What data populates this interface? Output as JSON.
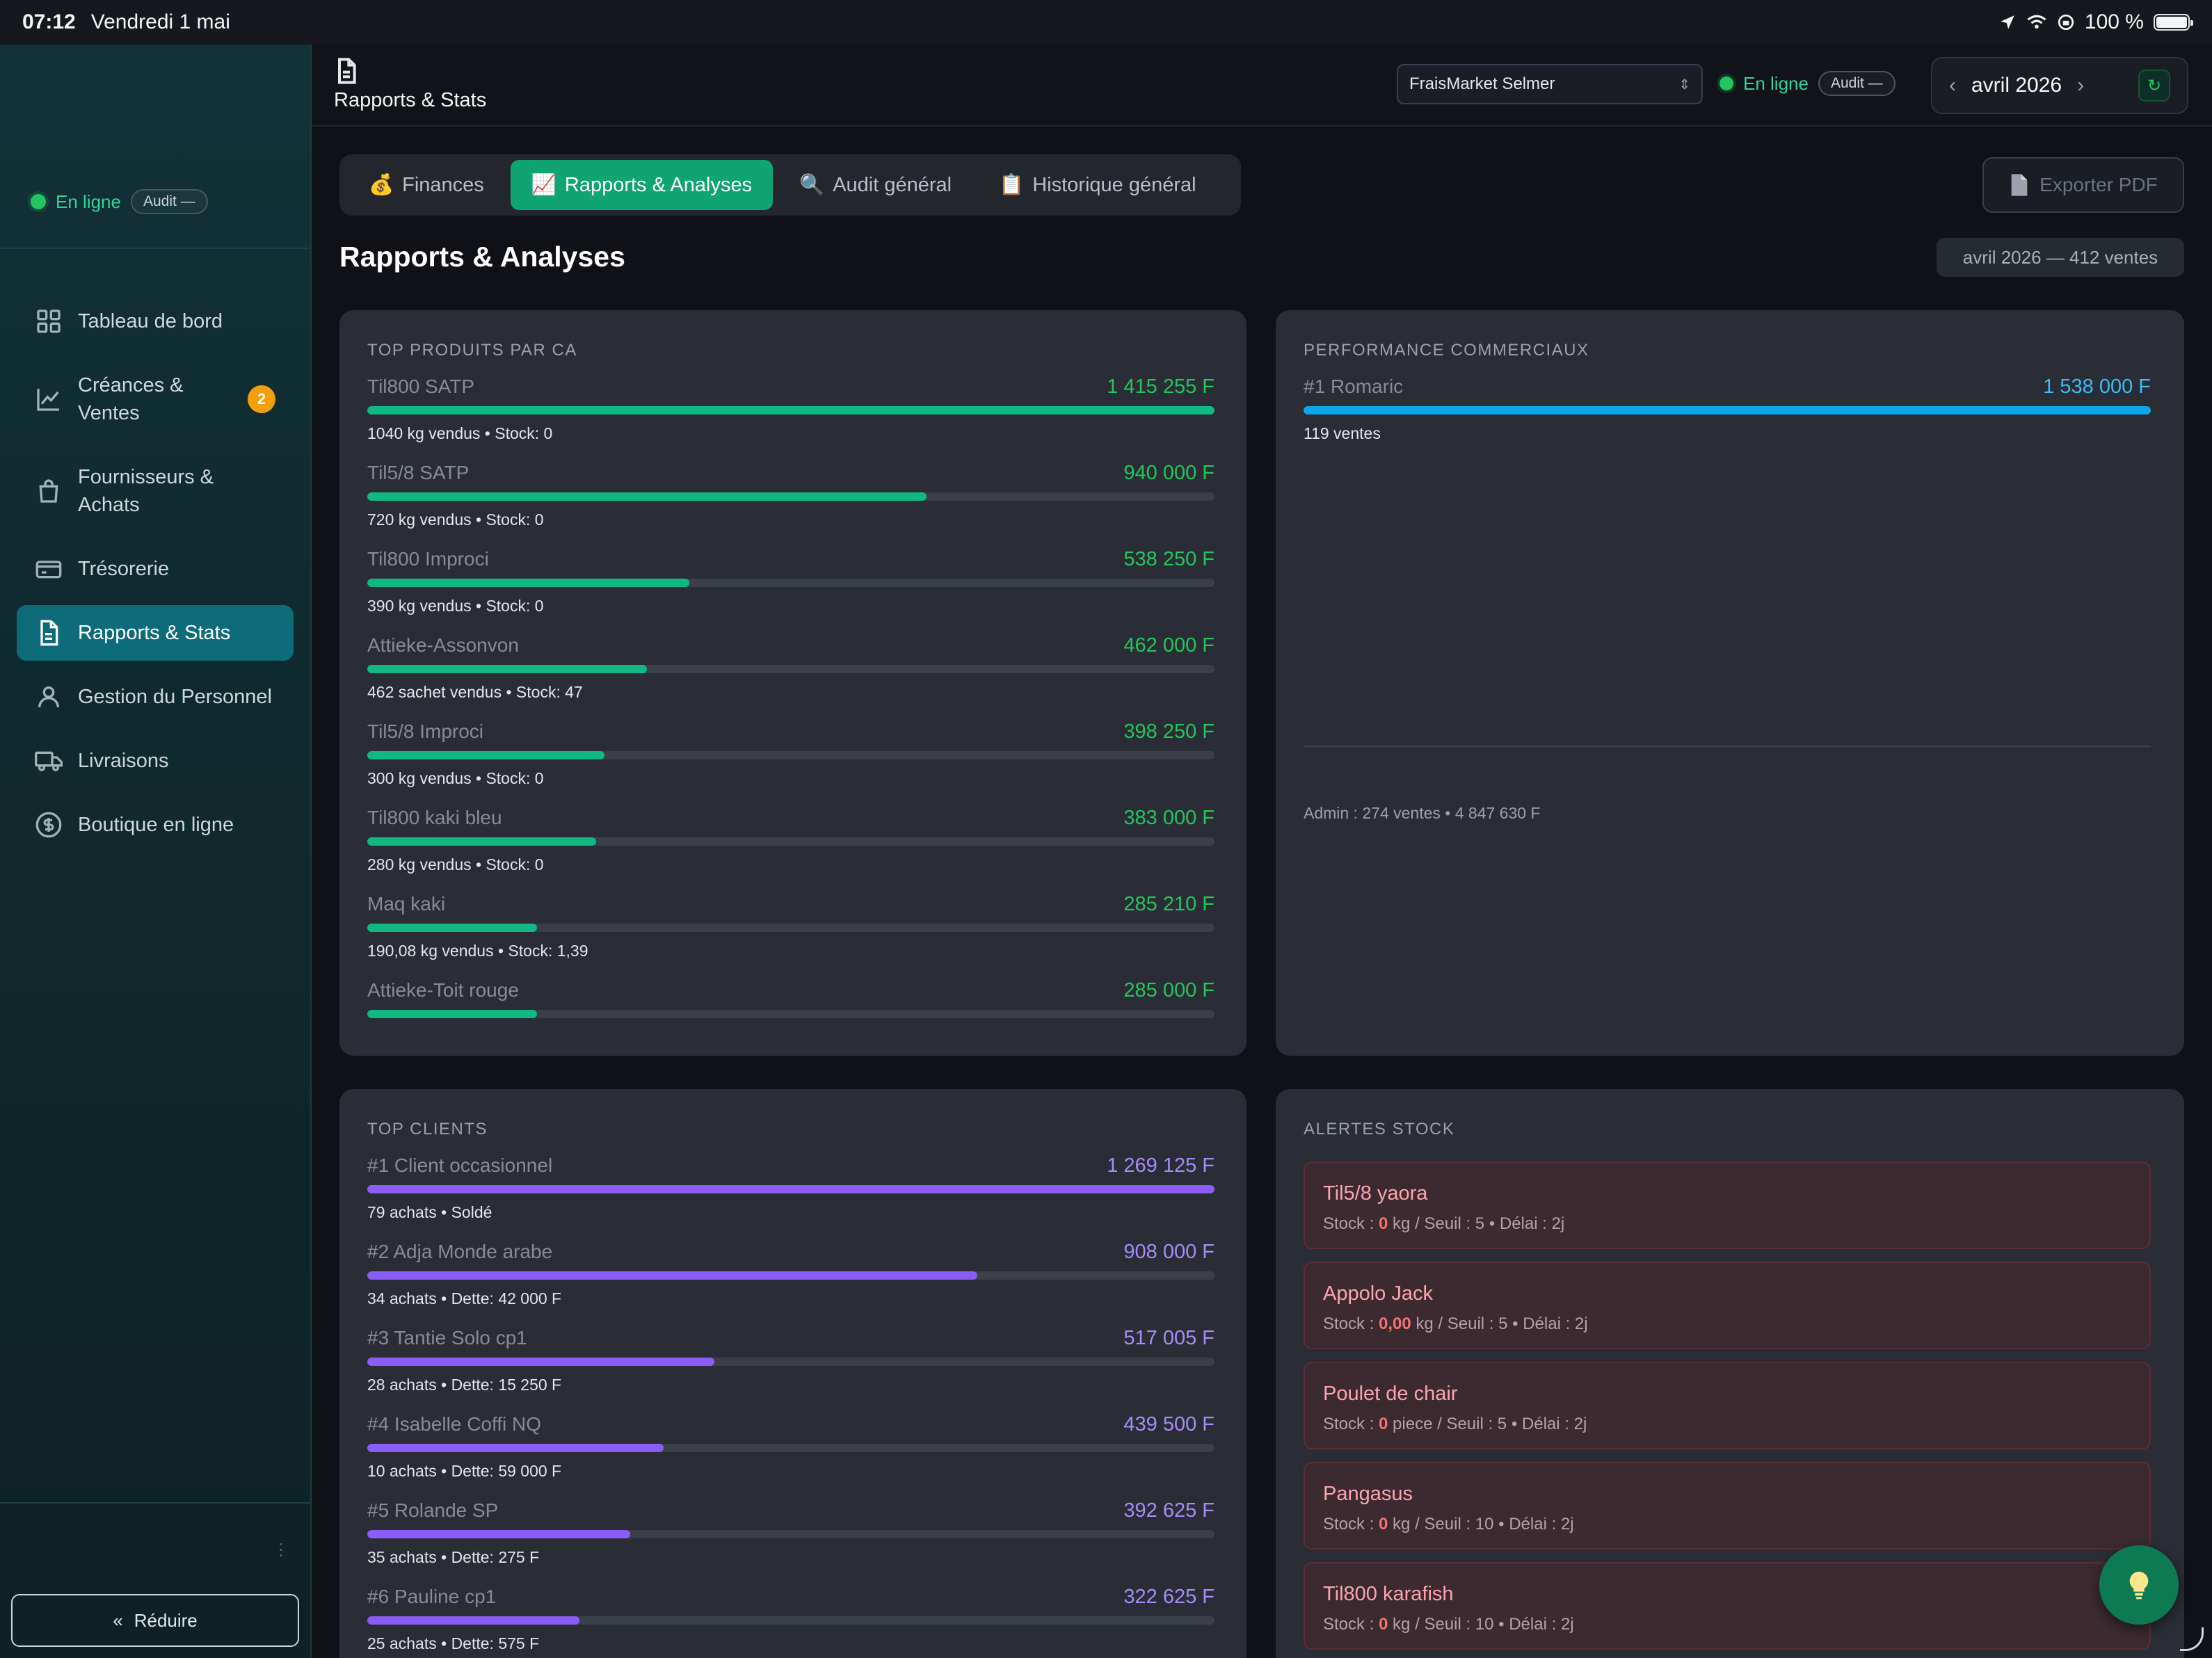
{
  "status_bar": {
    "time": "07:12",
    "date": "Vendredi 1 mai",
    "battery": "100 %"
  },
  "sidebar": {
    "online": "En ligne",
    "audit": "Audit —",
    "items": [
      {
        "label": "Tableau de bord",
        "icon": "grid-icon",
        "badge": ""
      },
      {
        "label": "Créances & Ventes",
        "icon": "chart-line-icon",
        "badge": "2"
      },
      {
        "label": "Fournisseurs & Achats",
        "icon": "shopping-bag-icon",
        "badge": ""
      },
      {
        "label": "Trésorerie",
        "icon": "cash-icon",
        "badge": ""
      },
      {
        "label": "Rapports & Stats",
        "icon": "report-icon",
        "badge": "",
        "active": true
      },
      {
        "label": "Gestion du Personnel",
        "icon": "user-icon",
        "badge": ""
      },
      {
        "label": "Livraisons",
        "icon": "truck-icon",
        "badge": ""
      },
      {
        "label": "Boutique en ligne",
        "icon": "dollar-circle-icon",
        "badge": ""
      }
    ],
    "collapse_label": "Réduire"
  },
  "topbar": {
    "page_label": "Rapports & Stats",
    "store": "FraisMarket Selmer",
    "online": "En ligne",
    "audit": "Audit —",
    "month": "avril 2026"
  },
  "tabs": [
    {
      "emoji": "💰",
      "label": "Finances"
    },
    {
      "emoji": "📈",
      "label": "Rapports & Analyses",
      "active": true
    },
    {
      "emoji": "🔍",
      "label": "Audit général"
    },
    {
      "emoji": "📋",
      "label": "Historique général"
    }
  ],
  "export_label": "Exporter PDF",
  "section_title": "Rapports & Analyses",
  "period_summary": "avril 2026 — 412 ventes",
  "top_products": {
    "title": "TOP PRODUITS PAR CA",
    "rows": [
      {
        "name": "Til800 SATP",
        "amount": "1 415 255 F",
        "sub": "1040 kg vendus • Stock: 0",
        "share": 1.0
      },
      {
        "name": "Til5/8 SATP",
        "amount": "940 000 F",
        "sub": "720 kg vendus • Stock: 0",
        "share": 0.66
      },
      {
        "name": "Til800 Improci",
        "amount": "538 250 F",
        "sub": "390 kg vendus • Stock: 0",
        "share": 0.38
      },
      {
        "name": "Attieke-Assonvon",
        "amount": "462 000 F",
        "sub": "462 sachet vendus • Stock: 47",
        "share": 0.33
      },
      {
        "name": "Til5/8 Improci",
        "amount": "398 250 F",
        "sub": "300 kg vendus • Stock: 0",
        "share": 0.28
      },
      {
        "name": "Til800 kaki bleu",
        "amount": "383 000 F",
        "sub": "280 kg vendus • Stock: 0",
        "share": 0.27
      },
      {
        "name": "Maq kaki",
        "amount": "285 210 F",
        "sub": "190,08 kg vendus • Stock: 1,39",
        "share": 0.2
      },
      {
        "name": "Attieke-Toit rouge",
        "amount": "285 000 F",
        "sub": "",
        "share": 0.2
      }
    ]
  },
  "performance": {
    "title": "PERFORMANCE COMMERCIAUX",
    "rows": [
      {
        "name": "#1 Romaric",
        "amount": "1 538 000 F",
        "sub": "119 ventes",
        "share": 1.0
      }
    ],
    "admin": "Admin : 274 ventes • 4 847 630 F"
  },
  "top_clients": {
    "title": "TOP CLIENTS",
    "rows": [
      {
        "name": "#1 Client occasionnel",
        "amount": "1 269 125 F",
        "sub": "79 achats • Soldé",
        "share": 1.0
      },
      {
        "name": "#2 Adja Monde arabe",
        "amount": "908 000 F",
        "sub": "34 achats • Dette: 42 000 F",
        "share": 0.72
      },
      {
        "name": "#3 Tantie Solo cp1",
        "amount": "517 005 F",
        "sub": "28 achats • Dette: 15 250 F",
        "share": 0.41
      },
      {
        "name": "#4 Isabelle Coffi NQ",
        "amount": "439 500 F",
        "sub": "10 achats • Dette: 59 000 F",
        "share": 0.35
      },
      {
        "name": "#5 Rolande SP",
        "amount": "392 625 F",
        "sub": "35 achats • Dette: 275 F",
        "share": 0.31
      },
      {
        "name": "#6 Pauline cp1",
        "amount": "322 625 F",
        "sub": "25 achats • Dette: 575 F",
        "share": 0.25
      }
    ]
  },
  "stock_alerts": {
    "title": "ALERTES STOCK",
    "items": [
      {
        "name": "Til5/8 yaora",
        "stock_label": "Stock : ",
        "stock": "0",
        "rest": " kg / Seuil : 5 • Délai : 2j"
      },
      {
        "name": "Appolo Jack",
        "stock_label": "Stock : ",
        "stock": "0,00",
        "rest": " kg / Seuil : 5 • Délai : 2j"
      },
      {
        "name": "Poulet de chair",
        "stock_label": "Stock : ",
        "stock": "0",
        "rest": " piece / Seuil : 5 • Délai : 2j"
      },
      {
        "name": "Pangasus",
        "stock_label": "Stock : ",
        "stock": "0",
        "rest": " kg / Seuil : 10 • Délai : 2j"
      },
      {
        "name": "Til800 karafish",
        "stock_label": "Stock : ",
        "stock": "0",
        "rest": " kg / Seuil : 10 • Délai : 2j"
      }
    ]
  },
  "colors": {
    "accent": "#0fa472",
    "active_nav": "#0e6b7a",
    "alert": "#fda4af",
    "clients": "#8b5cf6",
    "sales": "#0ea5e9"
  }
}
